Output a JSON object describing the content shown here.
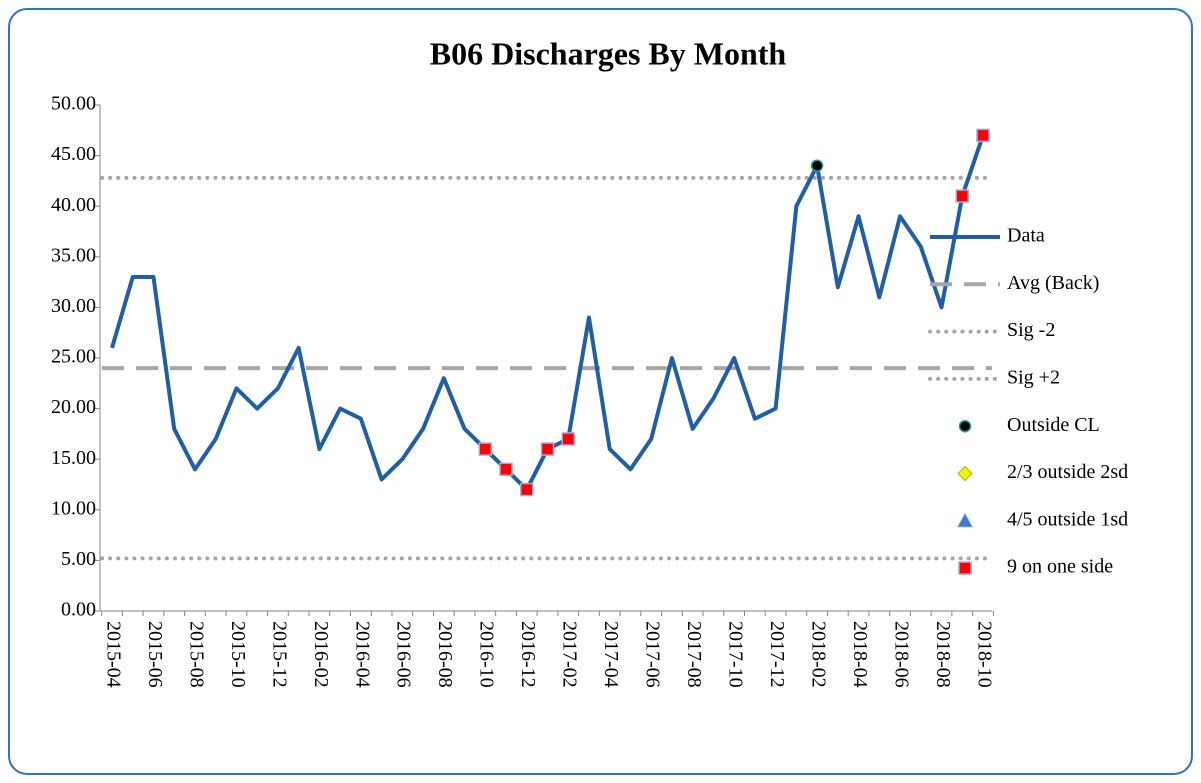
{
  "chart_data": {
    "type": "line",
    "title": "B06 Discharges By Month",
    "categories": [
      "2015-04",
      null,
      "2015-06",
      null,
      "2015-08",
      null,
      "2015-10",
      null,
      "2015-12",
      null,
      "2016-02",
      null,
      "2016-04",
      null,
      "2016-06",
      null,
      "2016-08",
      null,
      "2016-10",
      null,
      "2016-12",
      null,
      "2017-02",
      null,
      "2017-04",
      null,
      "2017-06",
      null,
      "2017-08",
      null,
      "2017-10",
      null,
      "2017-12",
      null,
      "2018-02",
      null,
      "2018-04",
      null,
      "2018-06",
      null,
      "2018-08",
      null,
      "2018-10"
    ],
    "ylim": [
      0,
      50
    ],
    "yticks": [
      {
        "value": 0,
        "label": "0.00"
      },
      {
        "value": 5,
        "label": "5.00"
      },
      {
        "value": 10,
        "label": "10.00"
      },
      {
        "value": 15,
        "label": "15.00"
      },
      {
        "value": 20,
        "label": "20.00"
      },
      {
        "value": 25,
        "label": "25.00"
      },
      {
        "value": 30,
        "label": "30.00"
      },
      {
        "value": 35,
        "label": "35.00"
      },
      {
        "value": 40,
        "label": "40.00"
      },
      {
        "value": 45,
        "label": "45.00"
      },
      {
        "value": 50,
        "label": "50.00"
      }
    ],
    "legend": "right",
    "series": [
      {
        "name": "Data",
        "kind": "line",
        "color": "#1f5fa8",
        "values": [
          26,
          33,
          33,
          18,
          14,
          17,
          22,
          20,
          22,
          26,
          16,
          20,
          19,
          13,
          15,
          18,
          23,
          18,
          16,
          14,
          12,
          16,
          17,
          29,
          16,
          14,
          17,
          25,
          18,
          21,
          25,
          19,
          20,
          40,
          44,
          32,
          39,
          31,
          39,
          36,
          30,
          41,
          47
        ]
      },
      {
        "name": "Avg (Back)",
        "kind": "dashed",
        "color": "#a6a6a6",
        "value": 24
      },
      {
        "name": "Sig -2",
        "kind": "dotted",
        "color": "#a6a6a6",
        "value": 5.2
      },
      {
        "name": "Sig +2",
        "kind": "dotted",
        "color": "#a6a6a6",
        "value": 42.8
      },
      {
        "name": "Outside CL",
        "kind": "circle",
        "color": "#000000",
        "values": [
          null,
          null,
          null,
          null,
          null,
          null,
          null,
          null,
          null,
          null,
          null,
          null,
          null,
          null,
          null,
          null,
          null,
          null,
          null,
          null,
          null,
          null,
          null,
          null,
          null,
          null,
          null,
          null,
          null,
          null,
          null,
          null,
          null,
          null,
          44,
          null,
          null,
          null,
          null,
          null,
          null,
          null,
          null
        ]
      },
      {
        "name": "2/3 outside 2sd",
        "kind": "diamond",
        "color": "#f2f200",
        "values": [
          null,
          null,
          null,
          null,
          null,
          null,
          null,
          null,
          null,
          null,
          null,
          null,
          null,
          null,
          null,
          null,
          null,
          null,
          null,
          null,
          null,
          null,
          null,
          null,
          null,
          null,
          null,
          null,
          null,
          null,
          null,
          null,
          null,
          null,
          null,
          null,
          null,
          null,
          null,
          null,
          null,
          null,
          null
        ]
      },
      {
        "name": "4/5 outside 1sd",
        "kind": "triangle",
        "color": "#3b7ad0",
        "values": [
          null,
          null,
          null,
          null,
          null,
          null,
          null,
          null,
          null,
          null,
          null,
          null,
          null,
          null,
          null,
          null,
          null,
          null,
          null,
          null,
          null,
          null,
          null,
          null,
          null,
          null,
          null,
          null,
          null,
          null,
          null,
          null,
          null,
          null,
          null,
          null,
          null,
          null,
          null,
          null,
          null,
          null,
          null
        ]
      },
      {
        "name": "9 on one side",
        "kind": "square",
        "color": "#ff0000",
        "values": [
          null,
          null,
          null,
          null,
          null,
          null,
          null,
          null,
          null,
          null,
          null,
          null,
          null,
          null,
          null,
          null,
          null,
          null,
          16,
          14,
          12,
          16,
          17,
          null,
          null,
          null,
          null,
          null,
          null,
          null,
          null,
          null,
          null,
          null,
          null,
          null,
          null,
          null,
          null,
          null,
          null,
          41,
          47
        ]
      }
    ]
  }
}
